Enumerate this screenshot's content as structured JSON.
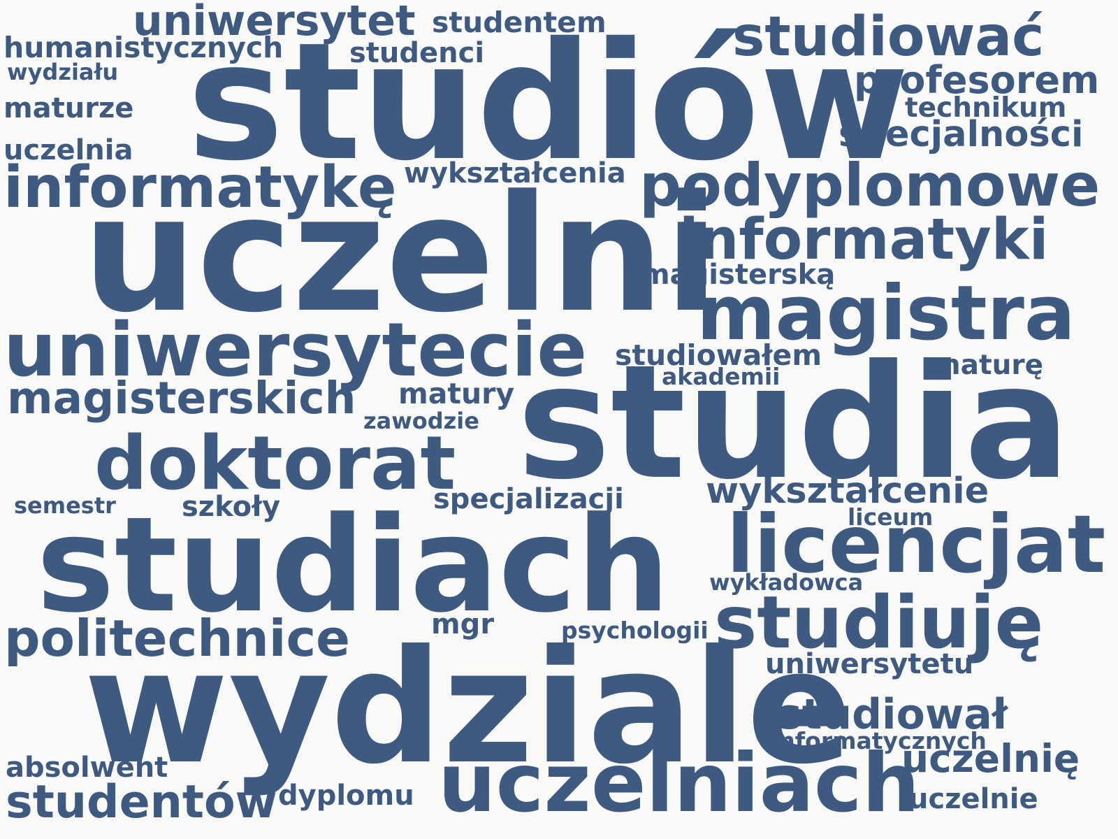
{
  "word_cloud": {
    "color": "#3e5a80",
    "background": "#f9f9f7",
    "words": [
      {
        "key": "studiow",
        "text": "studiów"
      },
      {
        "key": "uczelni",
        "text": "uczelni"
      },
      {
        "key": "studia",
        "text": "studia"
      },
      {
        "key": "studiach",
        "text": "studiach"
      },
      {
        "key": "wydziale",
        "text": "wydziale"
      },
      {
        "key": "uniwersytecie",
        "text": "uniwersytecie"
      },
      {
        "key": "magistra",
        "text": "magistra"
      },
      {
        "key": "uczelniach",
        "text": "uczelniach"
      },
      {
        "key": "licencjat",
        "text": "licencjat"
      },
      {
        "key": "doktorat",
        "text": "doktorat"
      },
      {
        "key": "podyplomowe",
        "text": "podyplomowe"
      },
      {
        "key": "studiuje",
        "text": "studiuję"
      },
      {
        "key": "informatyke",
        "text": "informatykę"
      },
      {
        "key": "informatyki",
        "text": "informatyki"
      },
      {
        "key": "studiowac",
        "text": "studiować"
      },
      {
        "key": "politechnice",
        "text": "politechnice"
      },
      {
        "key": "uniwersytet",
        "text": "uniwersytet"
      },
      {
        "key": "magisterskich",
        "text": "magisterskich"
      },
      {
        "key": "studentow",
        "text": "studentów"
      },
      {
        "key": "studiowal",
        "text": "studiował"
      },
      {
        "key": "uczelnie_acc",
        "text": "uczelnię"
      },
      {
        "key": "profesorem",
        "text": "profesorem"
      },
      {
        "key": "wyksztalcenie",
        "text": "wykształcenie"
      },
      {
        "key": "specjalnosci",
        "text": "specjalności"
      },
      {
        "key": "humanistycznych",
        "text": "humanistycznych"
      },
      {
        "key": "studentem",
        "text": "studentem"
      },
      {
        "key": "studenci",
        "text": "studenci"
      },
      {
        "key": "wydzialu",
        "text": "wydziału"
      },
      {
        "key": "maturze",
        "text": "maturze"
      },
      {
        "key": "technikum",
        "text": "technikum"
      },
      {
        "key": "uczelnia",
        "text": "uczelnia"
      },
      {
        "key": "wyksztalcenia",
        "text": "wykształcenia"
      },
      {
        "key": "magisterska",
        "text": "magisterską"
      },
      {
        "key": "studiowalem",
        "text": "studiowałem"
      },
      {
        "key": "akademii",
        "text": "akademii"
      },
      {
        "key": "mature",
        "text": "maturę"
      },
      {
        "key": "matury",
        "text": "matury"
      },
      {
        "key": "zawodzie",
        "text": "zawodzie"
      },
      {
        "key": "semestr",
        "text": "semestr"
      },
      {
        "key": "szkoly",
        "text": "szkoły"
      },
      {
        "key": "specjalizacji",
        "text": "specjalizacji"
      },
      {
        "key": "liceum",
        "text": "liceum"
      },
      {
        "key": "wykladowca",
        "text": "wykładowca"
      },
      {
        "key": "mgr",
        "text": "mgr"
      },
      {
        "key": "psychologii",
        "text": "psychologii"
      },
      {
        "key": "uniwersytetu",
        "text": "uniwersytetu"
      },
      {
        "key": "informatycznych",
        "text": "informatycznych"
      },
      {
        "key": "absolwent",
        "text": "absolwent"
      },
      {
        "key": "dyplomu",
        "text": "dyplomu"
      },
      {
        "key": "uczelnie",
        "text": "uczelnie"
      }
    ]
  }
}
